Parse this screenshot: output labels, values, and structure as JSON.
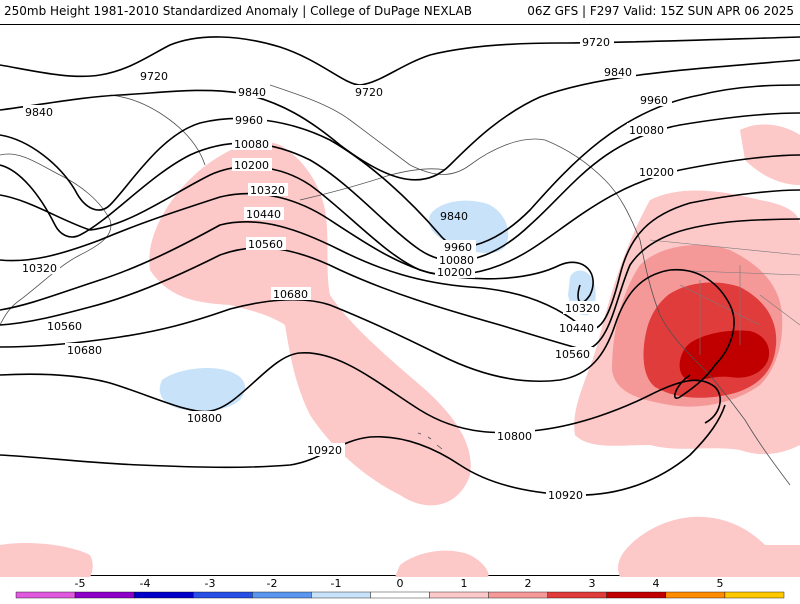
{
  "header": {
    "left_title": "250mb Height 1981-2010 Standardized Anomaly | College of DuPage NEXLAB",
    "right_title": "06Z GFS | F297 Valid: 15Z SUN APR 06 2025"
  },
  "colors": {
    "pos1": "#fcc8c8",
    "pos2": "#f59898",
    "pos3": "#e03c3c",
    "pos4": "#c00000",
    "neg1": "#c8e2fa",
    "background": "#ffffff",
    "contour": "#000000",
    "coastline": "#505050"
  },
  "contour_labels": [
    "9720",
    "9720",
    "9720",
    "9840",
    "9840",
    "9840",
    "9960",
    "9960",
    "9960",
    "10080",
    "10080",
    "10080",
    "10200",
    "10200",
    "10200",
    "10320",
    "10320",
    "10320",
    "10440",
    "10440",
    "10560",
    "10560",
    "10560",
    "10680",
    "10680",
    "10800",
    "10800",
    "10920",
    "10920",
    "9840"
  ],
  "colorbar": {
    "ticks": [
      "-5",
      "-4",
      "-3",
      "-2",
      "-1",
      "0",
      "1",
      "2",
      "3",
      "4",
      "5"
    ],
    "colors": [
      "#e05ae0",
      "#8c00c8",
      "#0000c8",
      "#2850e6",
      "#5a96f0",
      "#c8e2fa",
      "#ffffff",
      "#fcc8c8",
      "#f59898",
      "#e03c3c",
      "#c00000",
      "#ff8c00",
      "#ffc800"
    ]
  }
}
